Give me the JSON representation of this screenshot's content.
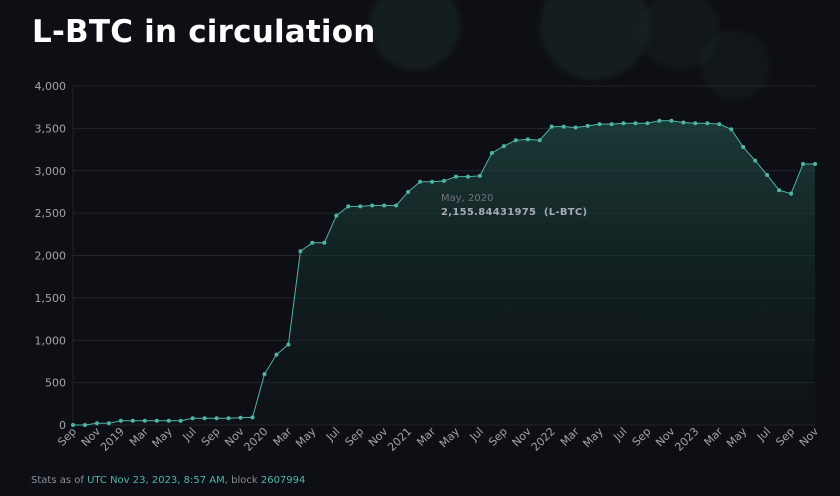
{
  "page": {
    "title": "L-BTC in circulation"
  },
  "tooltip": {
    "date": "May, 2020",
    "value": "2,155.84431975",
    "unit": "(L-BTC)"
  },
  "footer": {
    "prefix": "Stats as of",
    "timestamp": "UTC Nov 23, 2023, 8:57 AM",
    "block_label": ", block",
    "block_number": "2607994"
  },
  "colors": {
    "background": "#0d0f14",
    "line": "#4fb6a6",
    "fill": "#1a3a36",
    "grid": "#23262e",
    "tick_text": "#a0a4ab"
  },
  "chart_data": {
    "type": "area",
    "title": "L-BTC in circulation",
    "xlabel": "",
    "ylabel": "",
    "ylim": [
      0,
      4000
    ],
    "yticks": [
      0,
      500,
      1000,
      1500,
      2000,
      2500,
      3000,
      3500,
      4000
    ],
    "ytick_labels": [
      "0",
      "500",
      "1,000",
      "1,500",
      "2,000",
      "2,500",
      "3,000",
      "3,500",
      "4,000"
    ],
    "xtick_labels": [
      "Sep",
      "Nov",
      "2019",
      "Mar",
      "May",
      "Jul",
      "Sep",
      "Nov",
      "2020",
      "Mar",
      "May",
      "Jul",
      "Sep",
      "Nov",
      "2021",
      "Mar",
      "May",
      "Jul",
      "Sep",
      "Nov",
      "2022",
      "Mar",
      "May",
      "Jul",
      "Sep",
      "Nov",
      "2023",
      "Mar",
      "May",
      "Jul",
      "Sep",
      "Nov"
    ],
    "grid": true,
    "series": [
      {
        "values": [
          0,
          0,
          20,
          20,
          50,
          50,
          50,
          50,
          50,
          50,
          80,
          80,
          80,
          80,
          85,
          90,
          600,
          830,
          950,
          2050,
          2150,
          2150,
          2470,
          2580,
          2580,
          2590,
          2590,
          2590,
          2750,
          2870,
          2870,
          2880,
          2930,
          2930,
          2940,
          3210,
          3290,
          3360,
          3370,
          3360,
          3520,
          3520,
          3510,
          3530,
          3550,
          3550,
          3560,
          3560,
          3560,
          3590,
          3590,
          3570,
          3560,
          3560,
          3550,
          3490,
          3280,
          3120,
          2950,
          2770,
          2730,
          3080,
          3080
        ]
      }
    ]
  }
}
